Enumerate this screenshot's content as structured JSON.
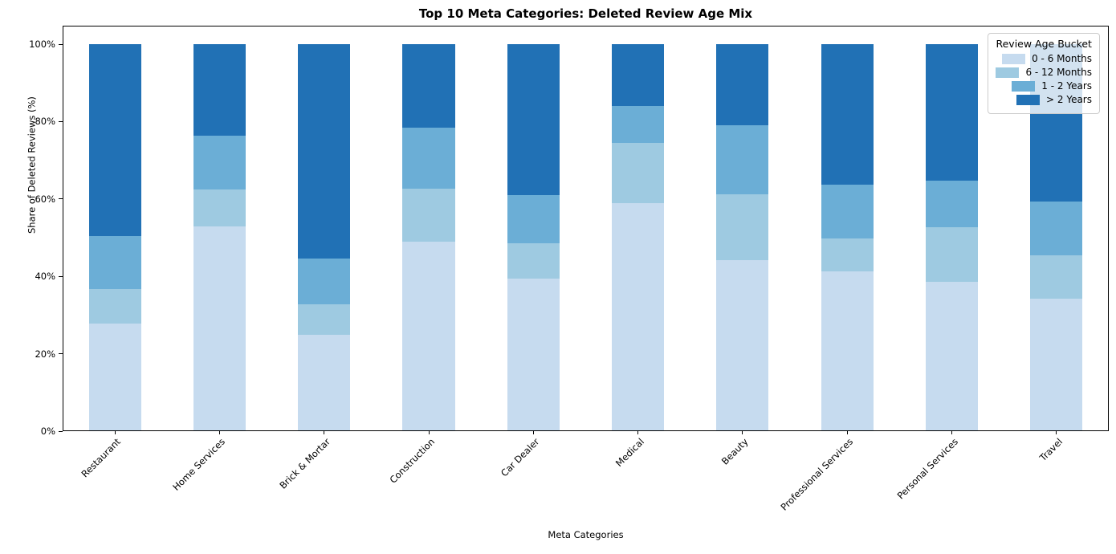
{
  "chart_data": {
    "type": "bar",
    "stacked": true,
    "normalized_percent": true,
    "title": "Top 10 Meta Categories: Deleted Review Age Mix",
    "xlabel": "Meta Categories",
    "ylabel": "Share of Deleted Reviews (%)",
    "categories": [
      "Restaurant",
      "Home Services",
      "Brick & Mortar",
      "Construction",
      "Car Dealer",
      "Medical",
      "Beauty",
      "Professional Services",
      "Personal Services",
      "Travel"
    ],
    "series": [
      {
        "name": "0 - 6 Months",
        "color": "#c6dbef",
        "values": [
          27.8,
          52.9,
          24.9,
          48.9,
          39.4,
          59.0,
          44.2,
          41.2,
          38.6,
          34.2
        ]
      },
      {
        "name": "6 - 12 Months",
        "color": "#9ecae1",
        "values": [
          9.0,
          9.6,
          7.9,
          13.7,
          9.2,
          15.5,
          17.0,
          8.6,
          14.2,
          11.2
        ]
      },
      {
        "name": "1 - 2 Years",
        "color": "#6baed6",
        "values": [
          13.6,
          13.9,
          11.8,
          15.8,
          12.4,
          9.5,
          17.8,
          13.9,
          12.0,
          14.0
        ]
      },
      {
        "name": "> 2 Years",
        "color": "#2171b5",
        "values": [
          49.6,
          23.6,
          55.4,
          21.6,
          39.0,
          16.0,
          21.0,
          36.3,
          35.2,
          40.6
        ]
      }
    ],
    "ylim": [
      0,
      100
    ],
    "ytick_values": [
      0,
      20,
      40,
      60,
      80,
      100
    ],
    "ytick_labels": [
      "0%",
      "20%",
      "40%",
      "60%",
      "80%",
      "100%"
    ],
    "legend": {
      "title": "Review Age Bucket",
      "position": "upper right"
    },
    "grid": false,
    "axis_color": "#000000",
    "background_color": "#ffffff"
  }
}
